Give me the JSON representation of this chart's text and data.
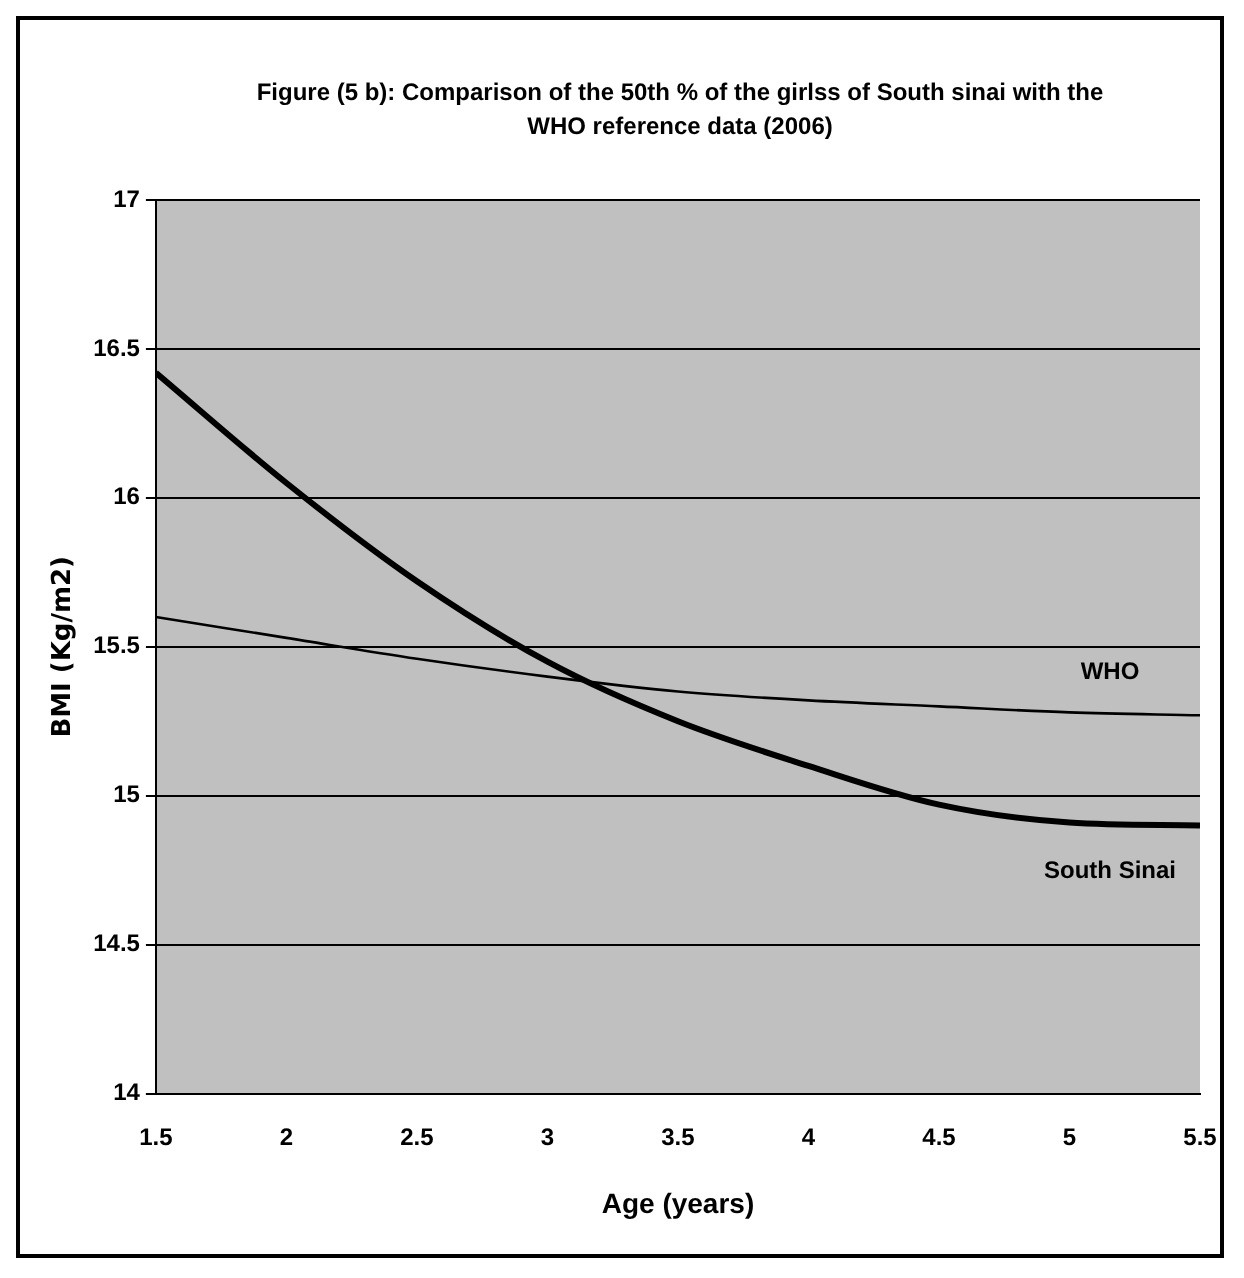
{
  "chart_data": {
    "type": "line",
    "title": "Figure (5 b): Comparison of the 50th % of the girlss of South sinai with the WHO reference data (2006)",
    "xlabel": "Age (years)",
    "ylabel": "BMI (Kg/m2)",
    "x": [
      1.5,
      2,
      2.5,
      3,
      3.5,
      4,
      4.5,
      5,
      5.5
    ],
    "series": [
      {
        "name": "WHO",
        "color": "#000000",
        "values": [
          15.6,
          15.53,
          15.46,
          15.4,
          15.35,
          15.32,
          15.3,
          15.28,
          15.27
        ]
      },
      {
        "name": "South Sinai",
        "color": "#000000",
        "values": [
          16.42,
          16.05,
          15.72,
          15.45,
          15.25,
          15.1,
          14.97,
          14.91,
          14.9
        ]
      }
    ],
    "xlim": [
      1.5,
      5.5
    ],
    "xticks": [
      1.5,
      2,
      2.5,
      3,
      3.5,
      4,
      4.5,
      5,
      5.5
    ],
    "ylim": [
      14,
      17
    ],
    "yticks": [
      14,
      14.5,
      15,
      15.5,
      16,
      16.5,
      17
    ],
    "grid": "y",
    "legend": false,
    "marker": "none",
    "line_style": "solid"
  }
}
